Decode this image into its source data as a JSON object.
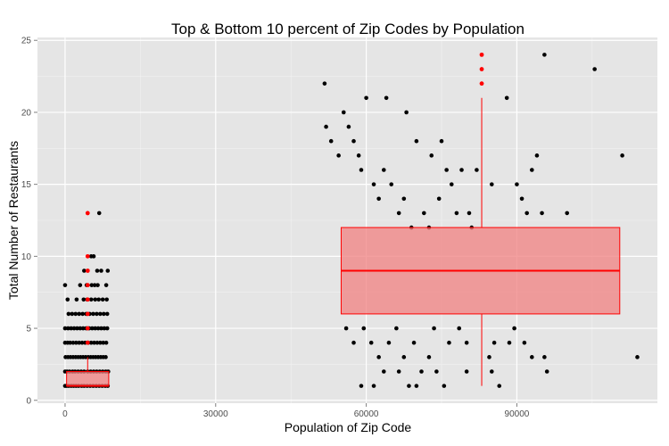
{
  "chart_data": {
    "type": "scatter",
    "title": "Top & Bottom 10 percent of Zip Codes by Population",
    "xlabel": "Population of Zip Code",
    "ylabel": "Total Number of Restaurants",
    "xlim": [
      -5500,
      118000
    ],
    "ylim": [
      -0.2,
      25.2
    ],
    "x_ticks": [
      0,
      30000,
      60000,
      90000
    ],
    "y_ticks": [
      0,
      5,
      10,
      15,
      20,
      25
    ],
    "x_tick_labels": [
      "0",
      "30000",
      "60000",
      "90000"
    ],
    "y_tick_labels": [
      "0",
      "5",
      "10",
      "15",
      "20",
      "25"
    ],
    "grid": true,
    "legend": "none",
    "colors": {
      "panel": "#e5e5e5",
      "grid_major": "#ffffff",
      "grid_minor": "#f2f2f2",
      "points": "#000000",
      "box_fill": "#f08080",
      "box_line": "#ff0000",
      "outliers": "#ff0000"
    },
    "boxplots": [
      {
        "group": "bottom-10-percent",
        "x": 4500,
        "x_range": [
          300,
          8700
        ],
        "min": 1,
        "q1": 1,
        "median": 1,
        "q3": 2,
        "max": 3,
        "outliers": [
          4,
          5,
          6,
          7,
          8,
          9,
          10,
          13
        ]
      },
      {
        "group": "top-10-percent",
        "x": 83000,
        "x_range": [
          55000,
          110500
        ],
        "min": 1,
        "q1": 6,
        "median": 9,
        "q3": 12,
        "max": 21,
        "outliers": [
          22,
          23,
          24
        ]
      }
    ],
    "points": [
      [
        0,
        1
      ],
      [
        300,
        1
      ],
      [
        700,
        1
      ],
      [
        1200,
        1
      ],
      [
        1700,
        1
      ],
      [
        2200,
        1
      ],
      [
        2700,
        1
      ],
      [
        3300,
        1
      ],
      [
        3800,
        1
      ],
      [
        4400,
        1
      ],
      [
        5000,
        1
      ],
      [
        5600,
        1
      ],
      [
        6200,
        1
      ],
      [
        6800,
        1
      ],
      [
        7400,
        1
      ],
      [
        8000,
        1
      ],
      [
        8500,
        1
      ],
      [
        0,
        2
      ],
      [
        400,
        2
      ],
      [
        900,
        2
      ],
      [
        1500,
        2
      ],
      [
        2000,
        2
      ],
      [
        2600,
        2
      ],
      [
        3200,
        2
      ],
      [
        3800,
        2
      ],
      [
        4500,
        2
      ],
      [
        5100,
        2
      ],
      [
        5700,
        2
      ],
      [
        6300,
        2
      ],
      [
        6900,
        2
      ],
      [
        7500,
        2
      ],
      [
        8100,
        2
      ],
      [
        8600,
        2
      ],
      [
        100,
        3
      ],
      [
        600,
        3
      ],
      [
        1100,
        3
      ],
      [
        1600,
        3
      ],
      [
        2100,
        3
      ],
      [
        2600,
        3
      ],
      [
        3100,
        3
      ],
      [
        3600,
        3
      ],
      [
        4100,
        3
      ],
      [
        4600,
        3
      ],
      [
        5100,
        3
      ],
      [
        5600,
        3
      ],
      [
        6100,
        3
      ],
      [
        6600,
        3
      ],
      [
        7100,
        3
      ],
      [
        7600,
        3
      ],
      [
        8100,
        3
      ],
      [
        0,
        4
      ],
      [
        500,
        4
      ],
      [
        1000,
        4
      ],
      [
        1600,
        4
      ],
      [
        2200,
        4
      ],
      [
        2800,
        4
      ],
      [
        3400,
        4
      ],
      [
        4000,
        4
      ],
      [
        4600,
        4
      ],
      [
        5200,
        4
      ],
      [
        5800,
        4
      ],
      [
        6400,
        4
      ],
      [
        7000,
        4
      ],
      [
        7600,
        4
      ],
      [
        8200,
        4
      ],
      [
        0,
        5
      ],
      [
        600,
        5
      ],
      [
        1200,
        5
      ],
      [
        1800,
        5
      ],
      [
        2400,
        5
      ],
      [
        3000,
        5
      ],
      [
        3600,
        5
      ],
      [
        4200,
        5
      ],
      [
        4800,
        5
      ],
      [
        5400,
        5
      ],
      [
        6000,
        5
      ],
      [
        6600,
        5
      ],
      [
        7200,
        5
      ],
      [
        7800,
        5
      ],
      [
        8400,
        5
      ],
      [
        700,
        6
      ],
      [
        1400,
        6
      ],
      [
        2100,
        6
      ],
      [
        2800,
        6
      ],
      [
        3500,
        6
      ],
      [
        4200,
        6
      ],
      [
        4900,
        6
      ],
      [
        5600,
        6
      ],
      [
        6300,
        6
      ],
      [
        7000,
        6
      ],
      [
        7700,
        6
      ],
      [
        8400,
        6
      ],
      [
        500,
        7
      ],
      [
        2300,
        7
      ],
      [
        3700,
        7
      ],
      [
        4400,
        7
      ],
      [
        5200,
        7
      ],
      [
        6000,
        7
      ],
      [
        6700,
        7
      ],
      [
        7500,
        7
      ],
      [
        8300,
        7
      ],
      [
        0,
        8
      ],
      [
        3000,
        8
      ],
      [
        4300,
        8
      ],
      [
        5300,
        8
      ],
      [
        5900,
        8
      ],
      [
        6500,
        8
      ],
      [
        8200,
        8
      ],
      [
        3800,
        9
      ],
      [
        6400,
        9
      ],
      [
        7200,
        9
      ],
      [
        8500,
        9
      ],
      [
        5200,
        10
      ],
      [
        5700,
        10
      ],
      [
        6800,
        13
      ],
      [
        51700,
        22
      ],
      [
        60000,
        21
      ],
      [
        64000,
        21
      ],
      [
        68000,
        20
      ],
      [
        70000,
        18
      ],
      [
        73000,
        17
      ],
      [
        75000,
        18
      ],
      [
        76000,
        16
      ],
      [
        77000,
        15
      ],
      [
        79000,
        16
      ],
      [
        82000,
        16
      ],
      [
        85000,
        15
      ],
      [
        88000,
        21
      ],
      [
        90000,
        15
      ],
      [
        91000,
        14
      ],
      [
        92000,
        13
      ],
      [
        93000,
        16
      ],
      [
        94000,
        17
      ],
      [
        95000,
        13
      ],
      [
        95500,
        24
      ],
      [
        100000,
        13
      ],
      [
        105500,
        23
      ],
      [
        111000,
        17
      ],
      [
        114000,
        3
      ],
      [
        95500,
        3
      ],
      [
        96000,
        2
      ],
      [
        86500,
        1
      ],
      [
        85000,
        2
      ],
      [
        84500,
        3
      ],
      [
        80000,
        2
      ],
      [
        75500,
        1
      ],
      [
        74000,
        2
      ],
      [
        70000,
        1
      ],
      [
        52000,
        19
      ],
      [
        53000,
        18
      ],
      [
        54500,
        17
      ],
      [
        55500,
        20
      ],
      [
        56500,
        19
      ],
      [
        57500,
        18
      ],
      [
        58500,
        17
      ],
      [
        59000,
        16
      ],
      [
        61500,
        15
      ],
      [
        62500,
        14
      ],
      [
        63500,
        16
      ],
      [
        65000,
        15
      ],
      [
        66500,
        13
      ],
      [
        67500,
        14
      ],
      [
        69000,
        12
      ],
      [
        71500,
        13
      ],
      [
        72500,
        12
      ],
      [
        74500,
        14
      ],
      [
        78000,
        13
      ],
      [
        80500,
        13
      ],
      [
        81000,
        12
      ],
      [
        56000,
        5
      ],
      [
        57500,
        4
      ],
      [
        59500,
        5
      ],
      [
        61000,
        4
      ],
      [
        62500,
        3
      ],
      [
        64500,
        4
      ],
      [
        66000,
        5
      ],
      [
        67500,
        3
      ],
      [
        69500,
        4
      ],
      [
        71000,
        2
      ],
      [
        72500,
        3
      ],
      [
        73500,
        5
      ],
      [
        76500,
        4
      ],
      [
        78500,
        5
      ],
      [
        80000,
        4
      ],
      [
        85500,
        4
      ],
      [
        88500,
        4
      ],
      [
        89500,
        5
      ],
      [
        91500,
        4
      ],
      [
        93000,
        3
      ],
      [
        59000,
        1
      ],
      [
        61500,
        1
      ],
      [
        63500,
        2
      ],
      [
        66500,
        2
      ],
      [
        68500,
        1
      ]
    ]
  }
}
